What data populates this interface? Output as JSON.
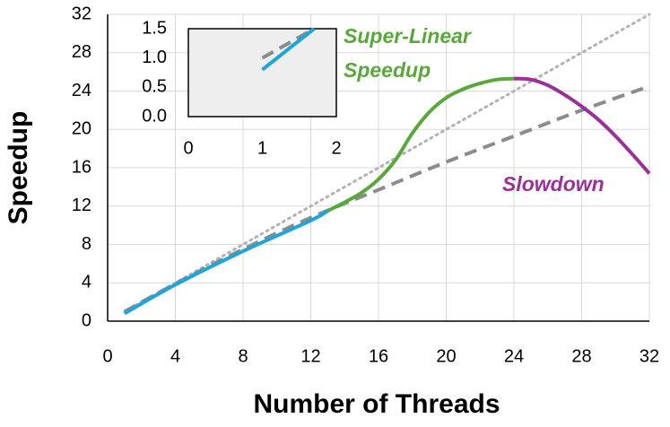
{
  "chart_data": [
    {
      "type": "line",
      "xlabel": "Number of Threads",
      "ylabel": "Speedup",
      "xlim": [
        0,
        32
      ],
      "xticks": [
        0,
        4,
        8,
        12,
        16,
        20,
        24,
        28,
        32
      ],
      "ylim": [
        0,
        32
      ],
      "yticks": [
        0,
        4,
        8,
        12,
        16,
        20,
        24,
        28,
        32
      ],
      "grid": true,
      "series": [
        {
          "color": "#b3b3b3",
          "style": "dotted",
          "x": [
            1,
            32
          ],
          "values": [
            1,
            32
          ]
        },
        {
          "color": "#8c8c8c",
          "style": "dashed",
          "x": [
            1,
            4,
            8,
            12,
            16,
            20,
            24,
            28,
            32
          ],
          "values": [
            1,
            3.9,
            7.5,
            10.8,
            13.7,
            16.6,
            19.3,
            22,
            24.5
          ]
        },
        {
          "color": "#1ea5dc",
          "style": "solid",
          "x": [
            1,
            4,
            8,
            12,
            13
          ],
          "values": [
            0.8,
            3.8,
            7.3,
            10.5,
            11.5
          ]
        },
        {
          "color": "#5aa83a",
          "style": "solid",
          "x": [
            13,
            14,
            15,
            16,
            17,
            18,
            19,
            20,
            21,
            22,
            23,
            24
          ],
          "values": [
            11.5,
            12.4,
            13.4,
            14.8,
            16.8,
            19.6,
            21.8,
            23.3,
            24.2,
            24.8,
            25.2,
            25.3
          ]
        },
        {
          "color": "#9b2f9b",
          "style": "solid",
          "x": [
            24,
            25,
            26,
            27,
            28,
            29,
            30,
            31,
            32
          ],
          "values": [
            25.3,
            25.2,
            24.6,
            23.6,
            22.4,
            21,
            19.3,
            17.4,
            15.4
          ]
        }
      ],
      "annotations": [
        {
          "lines": [
            "Super-Linear",
            "Speedup"
          ],
          "color": "#5aa83a"
        },
        {
          "lines": [
            "Slowdown"
          ],
          "color": "#9b2f9b"
        }
      ]
    },
    {
      "type": "line",
      "inset": true,
      "xlim": [
        0,
        2
      ],
      "xticks": [
        0,
        1,
        2
      ],
      "ylim": [
        0,
        1.5
      ],
      "yticks": [
        {
          "value": 0,
          "label": "0.0"
        },
        {
          "value": 0.5,
          "label": "0.5"
        },
        {
          "value": 1,
          "label": "1.0"
        },
        {
          "value": 1.5,
          "label": "1.5"
        }
      ],
      "grid": false,
      "background": "#eeeeee",
      "series": [
        {
          "color": "#8c8c8c",
          "style": "dashed",
          "x": [
            1,
            1.7
          ],
          "values": [
            1,
            1.5
          ]
        },
        {
          "color": "#1ea5dc",
          "style": "solid",
          "x": [
            1,
            1.7
          ],
          "values": [
            0.8,
            1.5
          ]
        }
      ]
    }
  ]
}
